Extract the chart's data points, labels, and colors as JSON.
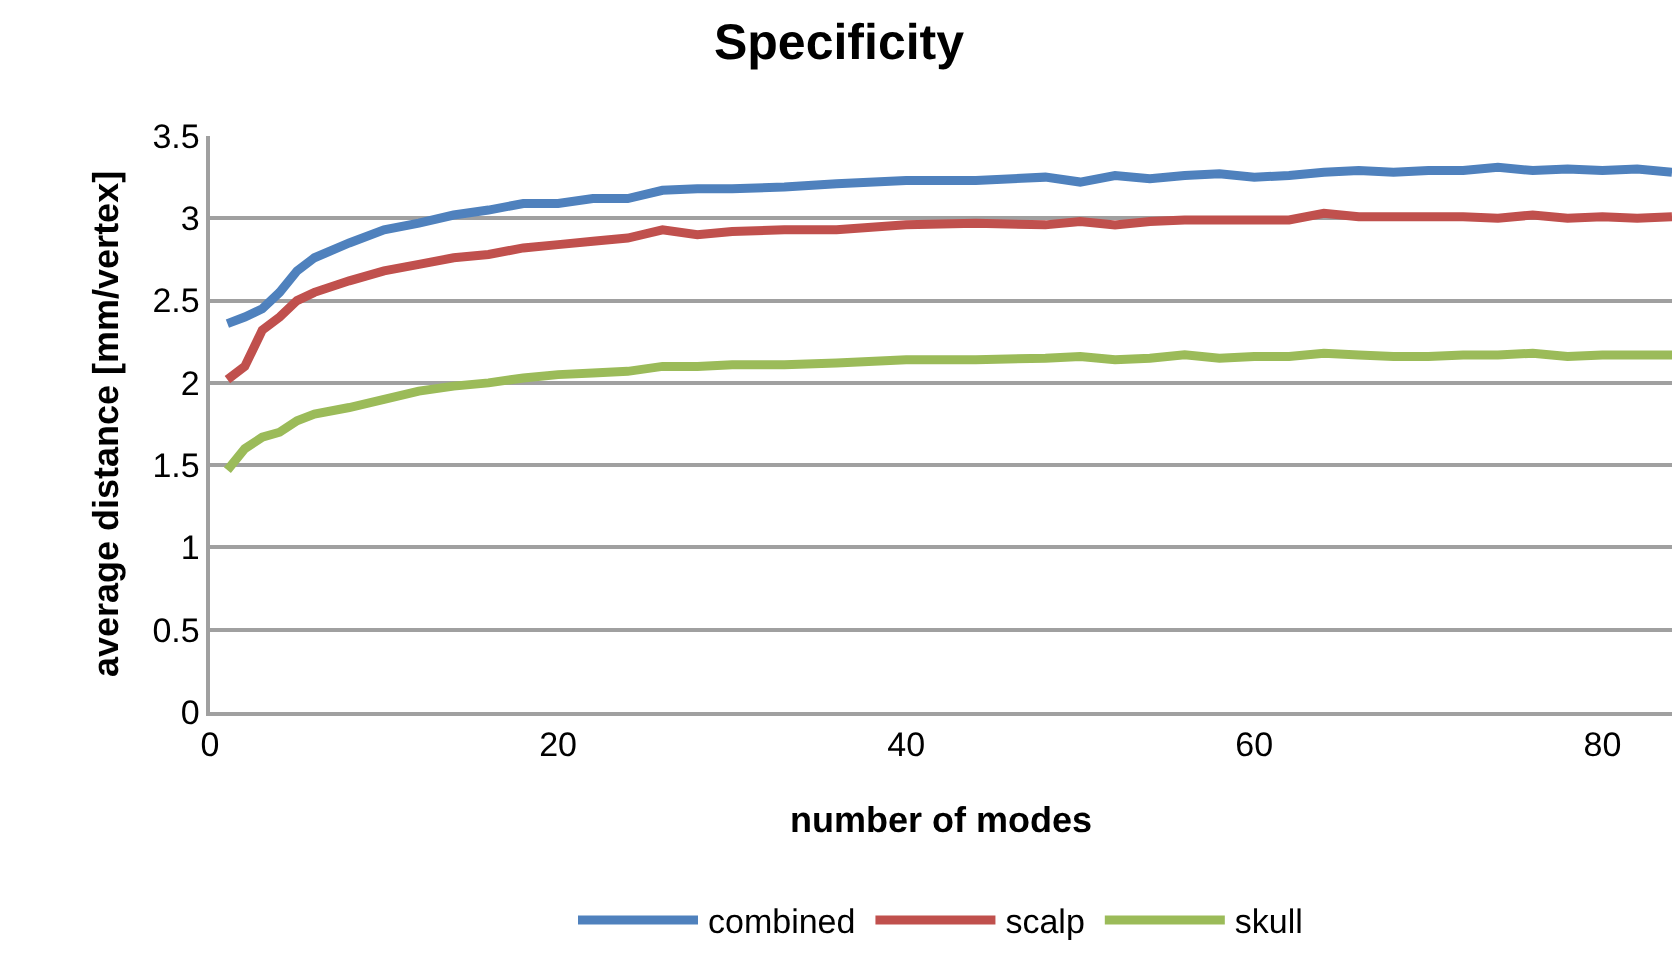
{
  "chart_data": {
    "type": "line",
    "title": "Specificity",
    "xlabel": "number of modes",
    "ylabel": "average distance [mm/vertex]",
    "x": [
      1,
      2,
      3,
      4,
      5,
      6,
      8,
      10,
      12,
      14,
      16,
      18,
      20,
      22,
      24,
      26,
      28,
      30,
      33,
      36,
      40,
      44,
      48,
      50,
      52,
      54,
      56,
      58,
      60,
      62,
      64,
      66,
      68,
      70,
      72,
      74,
      76,
      78,
      80,
      82,
      84
    ],
    "series": [
      {
        "name": "combined",
        "color": "#4f81bd",
        "values": [
          2.36,
          2.4,
          2.45,
          2.55,
          2.68,
          2.76,
          2.85,
          2.93,
          2.97,
          3.02,
          3.05,
          3.09,
          3.09,
          3.12,
          3.12,
          3.17,
          3.18,
          3.18,
          3.19,
          3.21,
          3.23,
          3.23,
          3.25,
          3.22,
          3.26,
          3.24,
          3.26,
          3.27,
          3.25,
          3.26,
          3.28,
          3.29,
          3.28,
          3.29,
          3.29,
          3.31,
          3.29,
          3.3,
          3.29,
          3.3,
          3.28
        ]
      },
      {
        "name": "scalp",
        "color": "#c0504d",
        "values": [
          2.02,
          2.1,
          2.32,
          2.4,
          2.5,
          2.55,
          2.62,
          2.68,
          2.72,
          2.76,
          2.78,
          2.82,
          2.84,
          2.86,
          2.88,
          2.93,
          2.9,
          2.92,
          2.93,
          2.93,
          2.96,
          2.97,
          2.96,
          2.98,
          2.96,
          2.98,
          2.99,
          2.99,
          2.99,
          2.99,
          3.03,
          3.01,
          3.01,
          3.01,
          3.01,
          3.0,
          3.02,
          3.0,
          3.01,
          3.0,
          3.01
        ]
      },
      {
        "name": "skull",
        "color": "#9bbb59",
        "values": [
          1.47,
          1.6,
          1.67,
          1.7,
          1.77,
          1.81,
          1.85,
          1.9,
          1.95,
          1.98,
          2.0,
          2.03,
          2.05,
          2.06,
          2.07,
          2.1,
          2.1,
          2.11,
          2.11,
          2.12,
          2.14,
          2.14,
          2.15,
          2.16,
          2.14,
          2.15,
          2.17,
          2.15,
          2.16,
          2.16,
          2.18,
          2.17,
          2.16,
          2.16,
          2.17,
          2.17,
          2.18,
          2.16,
          2.17,
          2.17,
          2.17
        ]
      }
    ],
    "xlim": [
      0,
      84
    ],
    "xticks": [
      0,
      20,
      40,
      60,
      80
    ],
    "ylim": [
      0,
      3.5
    ],
    "yticks": [
      0,
      0.5,
      1,
      1.5,
      2,
      2.5,
      3,
      3.5
    ],
    "grid": "y",
    "legend": "bottom",
    "marker": "none",
    "line_style": "solid"
  }
}
